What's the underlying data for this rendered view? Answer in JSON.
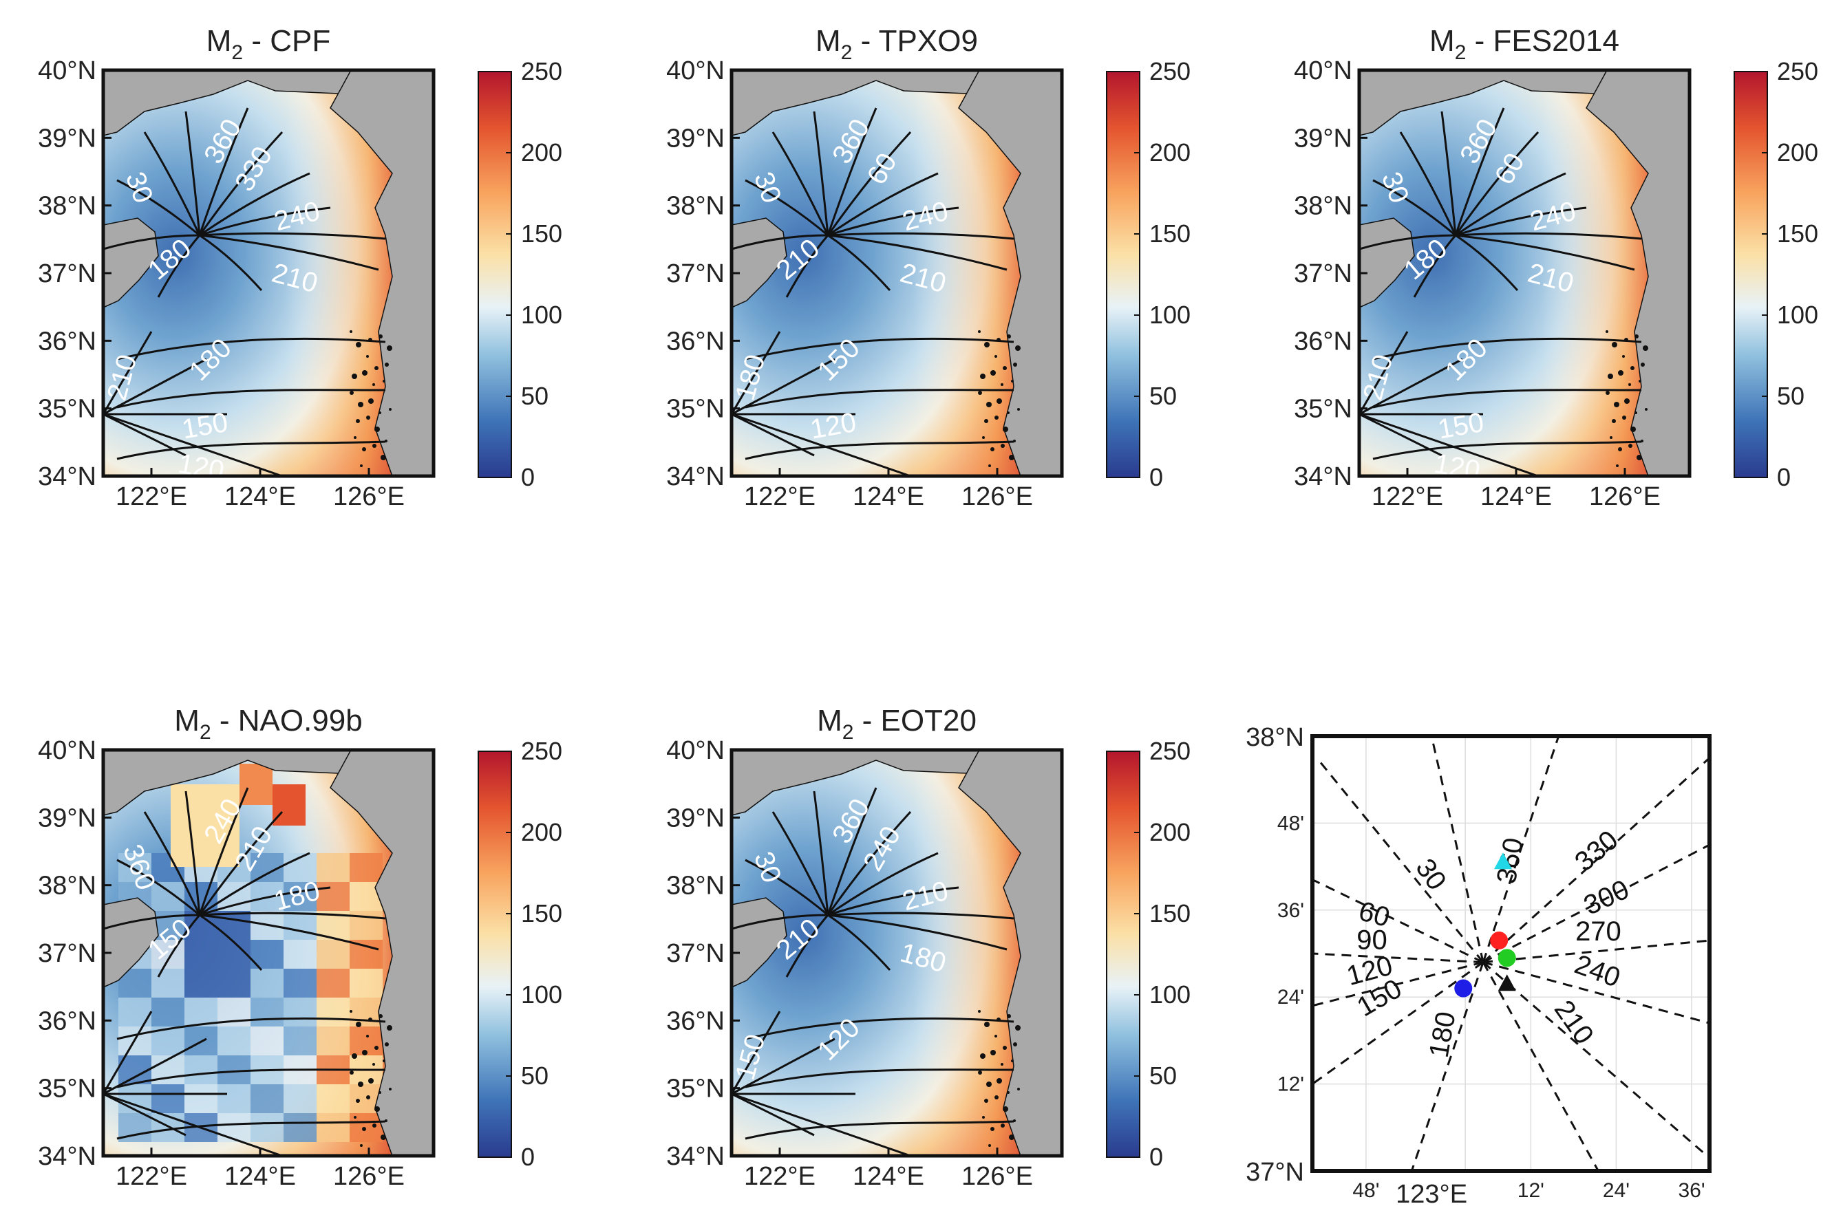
{
  "figure": {
    "panels": [
      {
        "title": "M2 - CPF",
        "title_main": "M",
        "title_sub": "2",
        "title_rest": " - CPF",
        "lat_ticks": [
          "40°N",
          "39°N",
          "38°N",
          "37°N",
          "36°N",
          "35°N",
          "34°N"
        ],
        "lon_ticks": [
          "122°E",
          "124°E",
          "126°E"
        ],
        "colorbar_ticks": [
          "250",
          "200",
          "150",
          "100",
          "50",
          "0"
        ],
        "contour_labels": [
          "30",
          "360",
          "330",
          "240",
          "180",
          "210",
          "210",
          "180",
          "150",
          "120"
        ]
      },
      {
        "title": "M2 - TPXO9",
        "title_main": "M",
        "title_sub": "2",
        "title_rest": " - TPXO9",
        "lat_ticks": [
          "40°N",
          "39°N",
          "38°N",
          "37°N",
          "36°N",
          "35°N",
          "34°N"
        ],
        "lon_ticks": [
          "122°E",
          "124°E",
          "126°E"
        ],
        "colorbar_ticks": [
          "250",
          "200",
          "150",
          "100",
          "50",
          "0"
        ],
        "contour_labels": [
          "30",
          "360",
          "60",
          "240",
          "210",
          "210",
          "180",
          "150",
          "120"
        ]
      },
      {
        "title": "M2 - FES2014",
        "title_main": "M",
        "title_sub": "2",
        "title_rest": " - FES2014",
        "lat_ticks": [
          "40°N",
          "39°N",
          "38°N",
          "37°N",
          "36°N",
          "35°N",
          "34°N"
        ],
        "lon_ticks": [
          "122°E",
          "124°E",
          "126°E"
        ],
        "colorbar_ticks": [
          "250",
          "200",
          "150",
          "100",
          "50",
          "0"
        ],
        "contour_labels": [
          "30",
          "360",
          "60",
          "240",
          "180",
          "210",
          "210",
          "180",
          "150",
          "120"
        ]
      },
      {
        "title": "M2 - NAO.99b",
        "title_main": "M",
        "title_sub": "2",
        "title_rest": " - NAO.99b",
        "lat_ticks": [
          "40°N",
          "39°N",
          "38°N",
          "37°N",
          "36°N",
          "35°N",
          "34°N"
        ],
        "lon_ticks": [
          "122°E",
          "124°E",
          "126°E"
        ],
        "colorbar_ticks": [
          "250",
          "200",
          "150",
          "100",
          "50",
          "0"
        ],
        "contour_labels": [
          "360",
          "240",
          "210",
          "180",
          "150"
        ]
      },
      {
        "title": "M2 - EOT20",
        "title_main": "M",
        "title_sub": "2",
        "title_rest": " - EOT20",
        "lat_ticks": [
          "40°N",
          "39°N",
          "38°N",
          "37°N",
          "36°N",
          "35°N",
          "34°N"
        ],
        "lon_ticks": [
          "122°E",
          "124°E",
          "126°E"
        ],
        "colorbar_ticks": [
          "250",
          "200",
          "150",
          "100",
          "50",
          "0"
        ],
        "contour_labels": [
          "30",
          "360",
          "240",
          "210",
          "210",
          "180",
          "150",
          "120"
        ]
      }
    ],
    "zoom_panel": {
      "lat_ticks": [
        "38°N",
        "48'",
        "36'",
        "24'",
        "12'",
        "37°N"
      ],
      "lon_ticks": [
        "48'",
        "123°E",
        "12'",
        "24'",
        "36'"
      ],
      "contour_labels": [
        "30",
        "360",
        "330",
        "300",
        "270",
        "240",
        "210",
        "180",
        "150",
        "120",
        "90",
        "60"
      ],
      "markers": [
        {
          "name": "CPF",
          "color": "#ff2020",
          "shape": "circle"
        },
        {
          "name": "TPXO9",
          "color": "#1e1ee6",
          "shape": "circle"
        },
        {
          "name": "FES2014",
          "color": "#22cc22",
          "shape": "circle"
        },
        {
          "name": "NAO.99b",
          "color": "#22d8e6",
          "shape": "triangle"
        },
        {
          "name": "EOT20",
          "color": "#111111",
          "shape": "triangle"
        }
      ]
    },
    "colors": {
      "land": "#a9a9a9",
      "colormap": [
        "#2a3b8f",
        "#3f74b8",
        "#8fc0de",
        "#e8f2f7",
        "#fbe0a6",
        "#f8a45f",
        "#e4552f",
        "#b3162d"
      ]
    }
  }
}
